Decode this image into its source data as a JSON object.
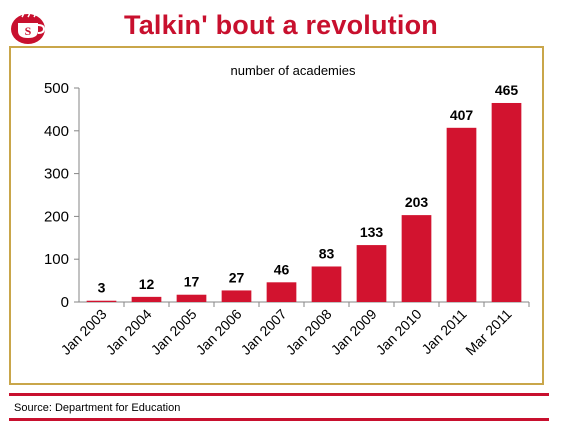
{
  "title": "Talkin' bout a revolution",
  "logo": {
    "icon": "tea-cup-logo-icon",
    "color": "#c8102e",
    "letter": "S"
  },
  "colors": {
    "accent": "#c8102e",
    "bar": "#d2132f",
    "frame": "#c9a64a"
  },
  "source": "Source: Department for Education",
  "chart_data": {
    "type": "bar",
    "subtitle": "number of academies",
    "categories": [
      "Jan 2003",
      "Jan 2004",
      "Jan 2005",
      "Jan 2006",
      "Jan 2007",
      "Jan 2008",
      "Jan 2009",
      "Jan 2010",
      "Jan 2011",
      "Mar 2011"
    ],
    "values": [
      3,
      12,
      17,
      27,
      46,
      83,
      133,
      203,
      407,
      465
    ],
    "ylim": [
      0,
      500
    ],
    "yticks": [
      0,
      100,
      200,
      300,
      400,
      500
    ],
    "xlabel": "",
    "ylabel": "",
    "grid": false,
    "legend": "none",
    "data_labels": true
  }
}
